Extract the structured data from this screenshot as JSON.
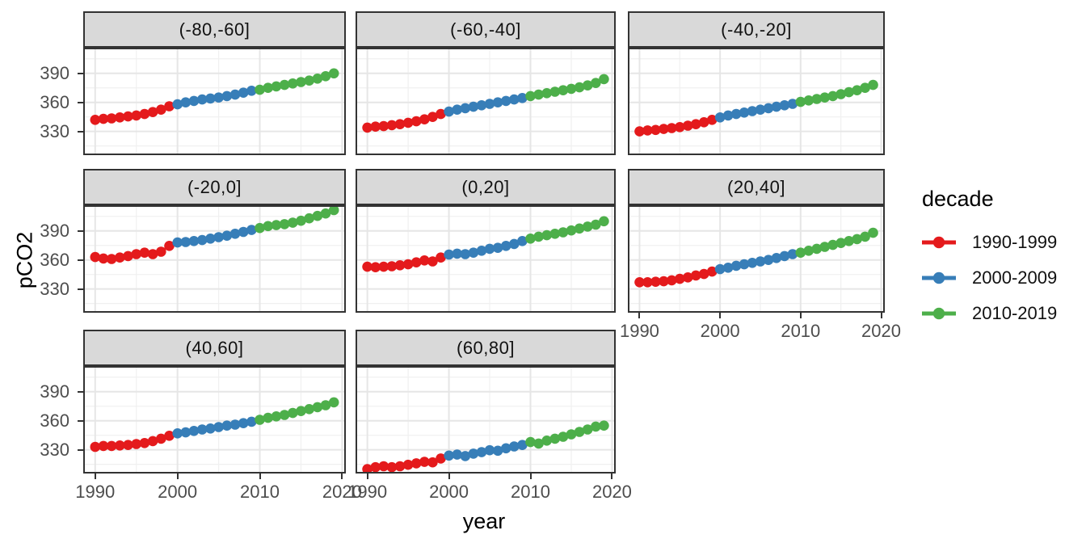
{
  "chart_data": {
    "type": "scatter",
    "title": "",
    "xlabel": "year",
    "ylabel": "pCO2",
    "x_ticks": [
      1990,
      2000,
      2010,
      2020
    ],
    "y_ticks": [
      330,
      360,
      390
    ],
    "x_minor": [
      1995,
      2005,
      2015
    ],
    "y_minor": [
      315,
      345,
      375,
      405
    ],
    "x_domain": [
      1988.55,
      2020.45
    ],
    "y_domain": [
      305.5,
      416.5
    ],
    "grid": "on",
    "years": [
      1990,
      1991,
      1992,
      1993,
      1994,
      1995,
      1996,
      1997,
      1998,
      1999,
      2000,
      2001,
      2002,
      2003,
      2004,
      2005,
      2006,
      2007,
      2008,
      2009,
      2010,
      2011,
      2012,
      2013,
      2014,
      2015,
      2016,
      2017,
      2018,
      2019
    ],
    "legend": {
      "title": "decade",
      "position": "right",
      "entries": [
        {
          "label": "1990-1999",
          "color": "#E41A1C",
          "from": 1990,
          "to": 1999
        },
        {
          "label": "2000-2009",
          "color": "#377EB8",
          "from": 2000,
          "to": 2009
        },
        {
          "label": "2010-2019",
          "color": "#4DAF4A",
          "from": 2010,
          "to": 2019
        }
      ]
    },
    "facets": [
      {
        "label": "(-80,-60]",
        "values": [
          342,
          343,
          343.5,
          344.5,
          345.5,
          346.5,
          348,
          350,
          352.5,
          356,
          358,
          360,
          361.5,
          363,
          364,
          365,
          366.5,
          368,
          370,
          372,
          373,
          375,
          376.5,
          378,
          379.5,
          381,
          382.5,
          384.5,
          387,
          390
        ]
      },
      {
        "label": "(-60,-40]",
        "values": [
          334,
          335,
          335.5,
          336.5,
          337.5,
          339,
          340.5,
          342.5,
          345,
          348,
          350.5,
          352.5,
          354,
          355.5,
          357,
          358.5,
          360,
          361.5,
          363,
          364.5,
          366.5,
          368,
          369.5,
          371,
          372.5,
          374,
          375.5,
          377.5,
          380,
          384
        ]
      },
      {
        "label": "(-40,-20]",
        "values": [
          330,
          331,
          331.5,
          332.5,
          333.5,
          334.5,
          336,
          337.5,
          339.5,
          342,
          344.5,
          346.5,
          348,
          349.5,
          351,
          352.5,
          354,
          355.5,
          357,
          358.5,
          360.5,
          362,
          363.5,
          365,
          366.5,
          368.5,
          370.5,
          372.5,
          375,
          378
        ]
      },
      {
        "label": "(-20,0]",
        "values": [
          363,
          361.5,
          361,
          362.5,
          364,
          366,
          367.5,
          366,
          368.5,
          374.5,
          378,
          378.5,
          379.5,
          380.5,
          382,
          383.5,
          385,
          387,
          389,
          391,
          393,
          395,
          396,
          397,
          398.5,
          400.5,
          403,
          405.5,
          408,
          411.5
        ]
      },
      {
        "label": "(0,20]",
        "values": [
          353,
          352.5,
          353,
          353.5,
          354.5,
          355.5,
          357.5,
          359.5,
          358.5,
          362.5,
          365.5,
          366.5,
          366,
          367.5,
          369.5,
          371.5,
          372.5,
          374.5,
          376.5,
          379.5,
          382,
          384,
          385.5,
          387,
          388.5,
          390.5,
          392.5,
          394.5,
          396.5,
          400
        ]
      },
      {
        "label": "(20,40]",
        "values": [
          337,
          337,
          337.5,
          338,
          339,
          340.5,
          342,
          344,
          345.5,
          348,
          350.5,
          352,
          354,
          355.5,
          357,
          358.5,
          360,
          362,
          364,
          366,
          367.5,
          369.5,
          371.5,
          373.5,
          375.5,
          377.5,
          379.5,
          381.5,
          384,
          388
        ]
      },
      {
        "label": "(40,60]",
        "values": [
          333,
          334,
          334,
          334.5,
          335,
          336,
          337,
          339,
          341.5,
          344.5,
          347,
          348,
          349.5,
          351,
          352,
          353.5,
          355,
          356,
          357.5,
          359,
          361,
          363,
          364.5,
          366,
          368,
          370,
          372,
          374,
          376,
          379
        ]
      },
      {
        "label": "(60,80]",
        "values": [
          310,
          312,
          313,
          312,
          313,
          314.5,
          316,
          317.5,
          317,
          321,
          324,
          325,
          323.5,
          326,
          327.5,
          329.5,
          329,
          331.5,
          333.5,
          335,
          338,
          336.5,
          339.5,
          341.5,
          343.5,
          346,
          348.5,
          351,
          354,
          355
        ]
      }
    ],
    "style": {
      "strip_fill": "#D9D9D9",
      "panel_border": "#333333",
      "grid_major": "#E6E6E6",
      "grid_minor": "#F0F0F0",
      "tick_label_color": "#4D4D4D",
      "point_radius": 6.3,
      "line_width": 3
    }
  }
}
